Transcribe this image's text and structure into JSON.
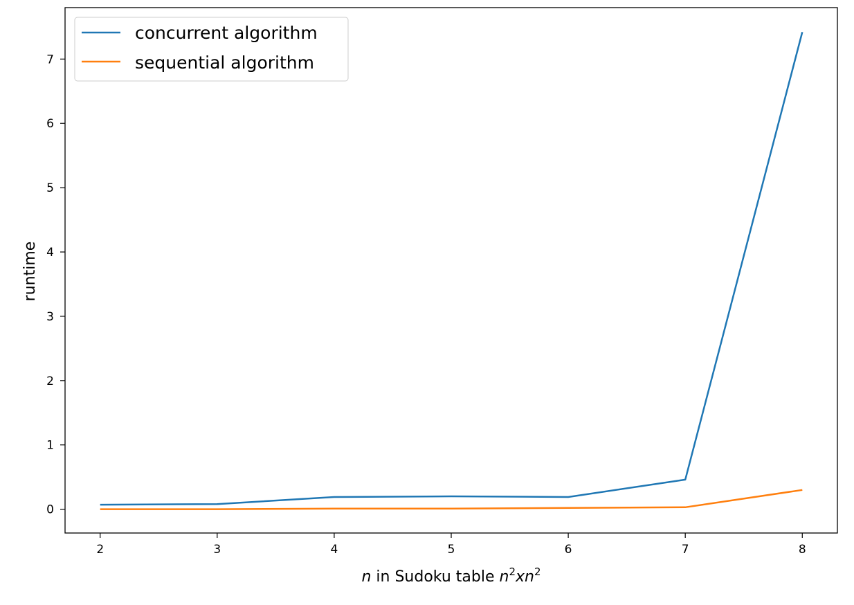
{
  "chart_data": {
    "type": "line",
    "x": [
      2,
      3,
      4,
      5,
      6,
      7,
      8
    ],
    "series": [
      {
        "name": "concurrent algorithm",
        "color": "#1f77b4",
        "values": [
          0.07,
          0.08,
          0.19,
          0.2,
          0.19,
          0.46,
          7.42
        ]
      },
      {
        "name": "sequential algorithm",
        "color": "#ff7f0e",
        "values": [
          0.0,
          0.0,
          0.01,
          0.01,
          0.02,
          0.03,
          0.3
        ]
      }
    ],
    "xlabel": {
      "prefix": "n",
      "middle": " in Sudoku table ",
      "base1": "n",
      "sup1": "2",
      "base2": "xn",
      "sup2": "2"
    },
    "ylabel": "runtime",
    "xticks": [
      "2",
      "3",
      "4",
      "5",
      "6",
      "7",
      "8"
    ],
    "yticks": [
      "0",
      "1",
      "2",
      "3",
      "4",
      "5",
      "6",
      "7"
    ],
    "xlim": [
      1.7,
      8.3
    ],
    "ylim": [
      -0.37,
      7.8
    ],
    "grid": false,
    "legend_position": "upper left"
  }
}
